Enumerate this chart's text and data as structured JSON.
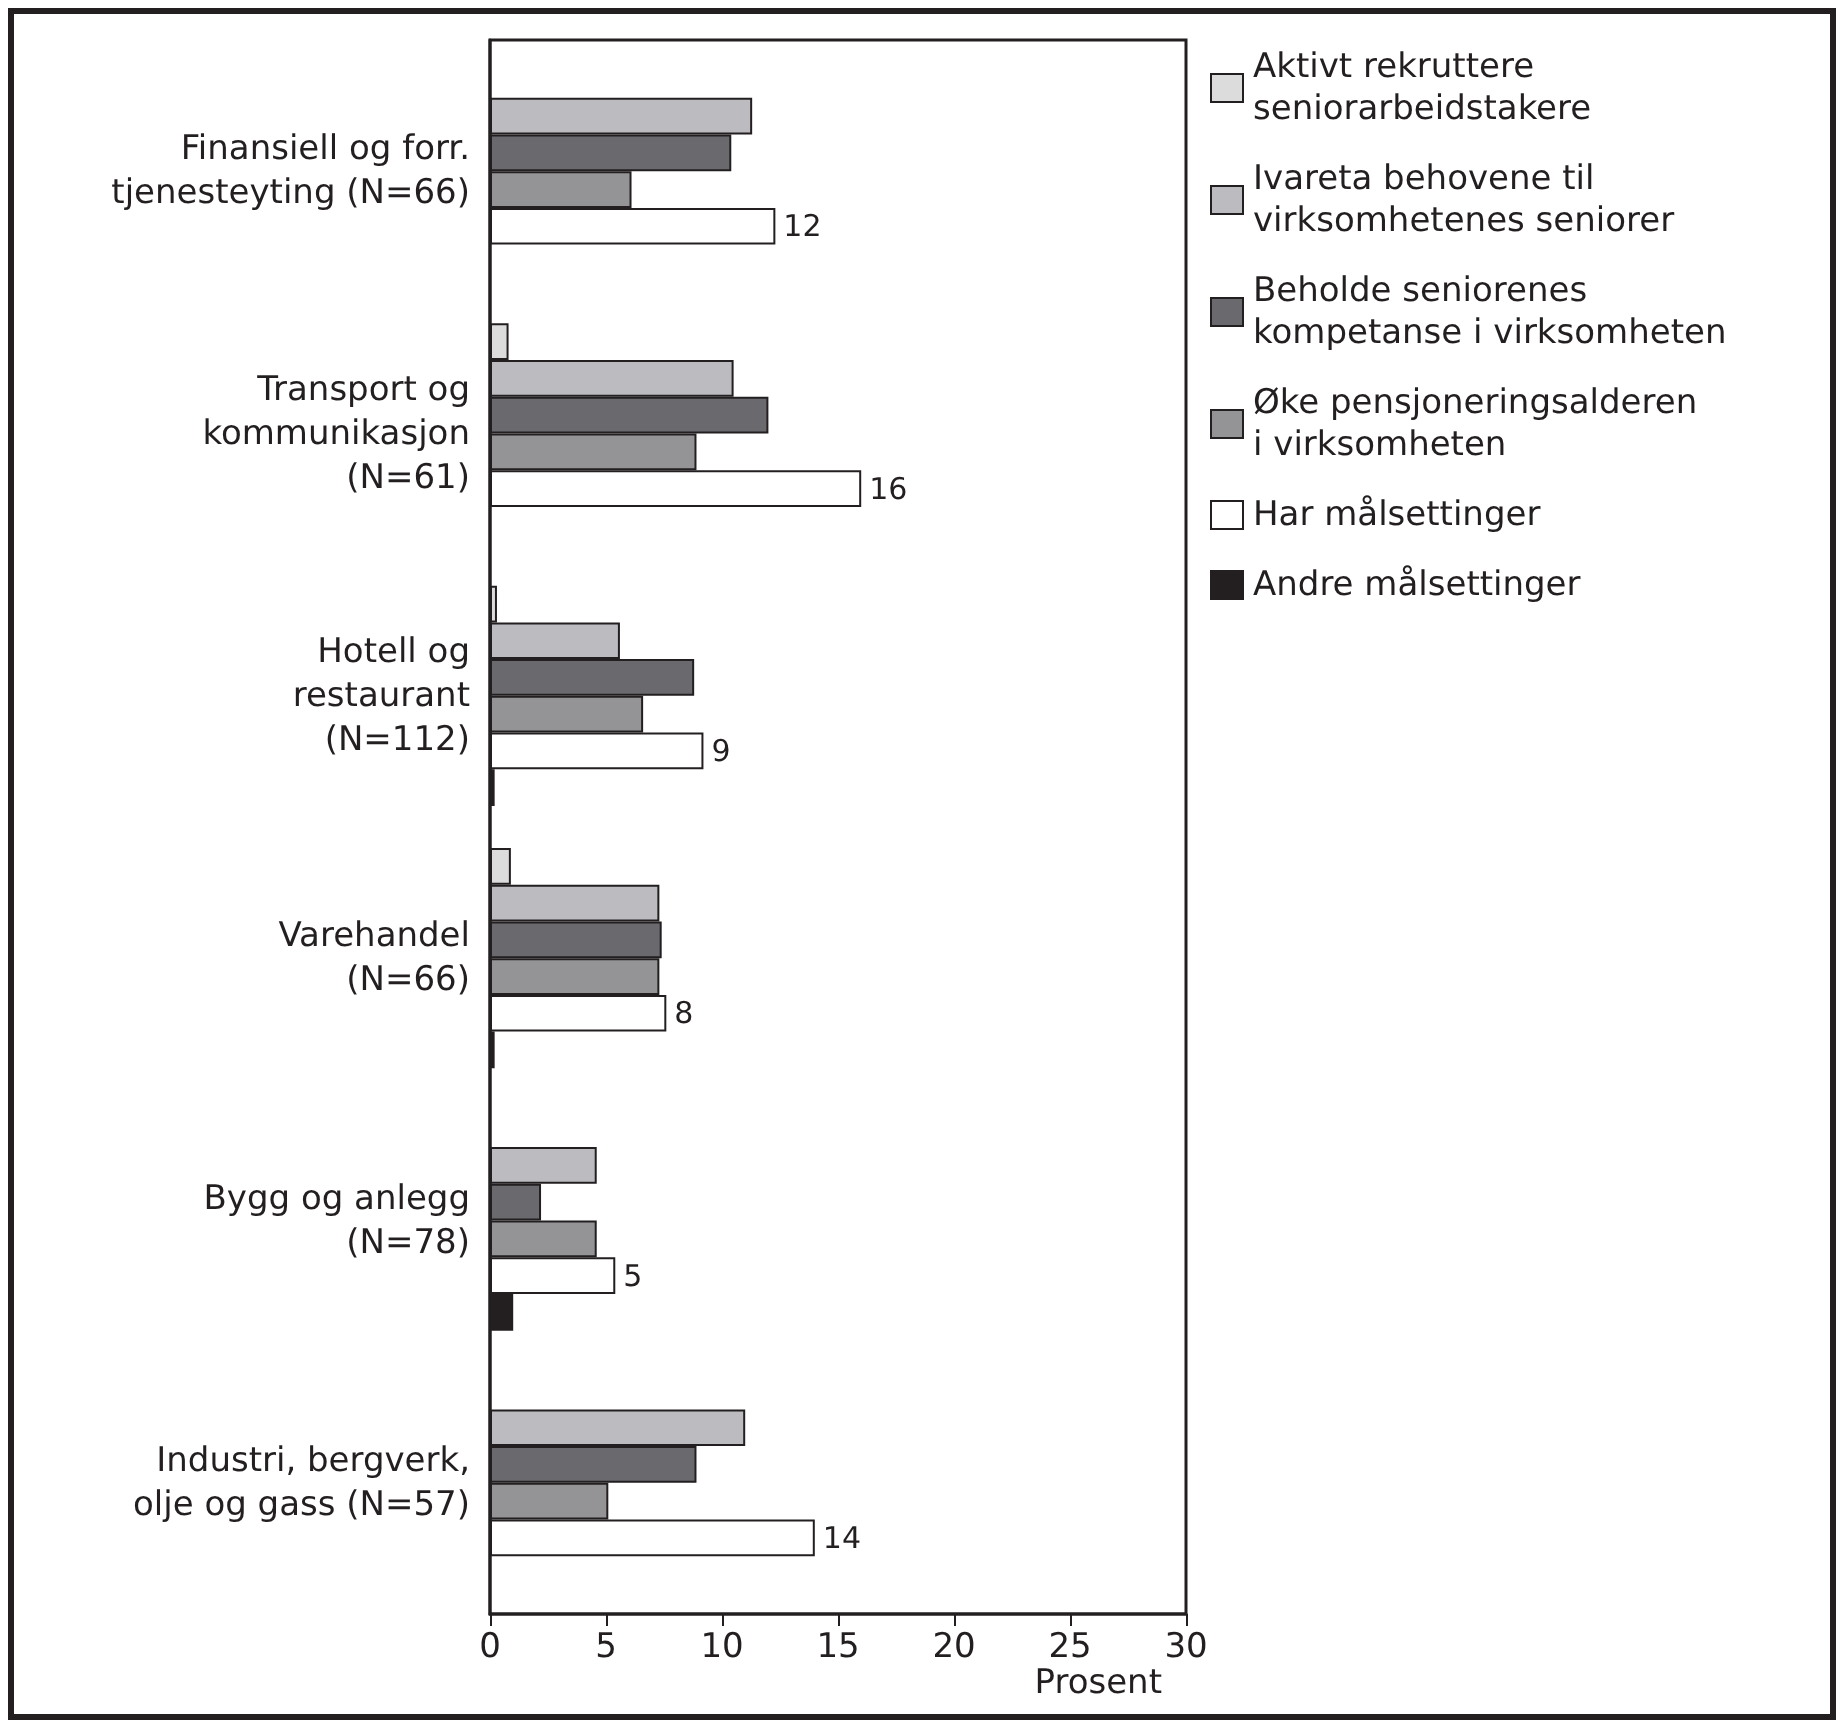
{
  "chart_data": {
    "type": "bar",
    "orientation": "horizontal",
    "xlabel": "Prosent",
    "categories": [
      "Finansiell og forr.\ntjenesteyting (N=66)",
      "Transport og\nkommunikasjon\n(N=61)",
      "Hotell og\nrestaurant\n(N=112)",
      "Varehandel\n(N=66)",
      "Bygg og anlegg\n(N=78)",
      "Industri, bergverk,\nolje og gass (N=57)"
    ],
    "series": [
      {
        "name": "Aktivt rekruttere\nseniorarbeidstakere",
        "color": "#dcdcdc",
        "values": [
          null,
          0.8,
          0.3,
          0.9,
          null,
          null
        ]
      },
      {
        "name": "Ivareta behovene til\nvirksomhetenes seniorer",
        "color": "#bcbcc0",
        "values": [
          11.3,
          10.5,
          5.6,
          7.3,
          4.6,
          11.0
        ]
      },
      {
        "name": "Beholde seniorenes\nkompetanse i virksomheten",
        "color": "#6a6a6e",
        "values": [
          10.4,
          12.0,
          8.8,
          7.4,
          2.2,
          8.9
        ]
      },
      {
        "name": "Øke pensjoneringsalderen\ni virksomheten",
        "color": "#949496",
        "values": [
          6.1,
          8.9,
          6.6,
          7.3,
          4.6,
          5.1
        ]
      },
      {
        "name": "Har målsettinger",
        "color": "#ffffff",
        "values": [
          12.3,
          16.0,
          9.2,
          7.6,
          5.4,
          14.0
        ],
        "value_labels": [
          "12",
          "16",
          "9",
          "8",
          "5",
          "14"
        ]
      },
      {
        "name": "Andre målsettinger",
        "color": "#231f20",
        "values": [
          null,
          null,
          0.2,
          0.2,
          1.0,
          null
        ]
      }
    ],
    "xlim": [
      0,
      30
    ],
    "xticks": [
      0,
      5,
      10,
      15,
      20,
      25,
      30
    ],
    "grid": false,
    "legend": "right"
  }
}
